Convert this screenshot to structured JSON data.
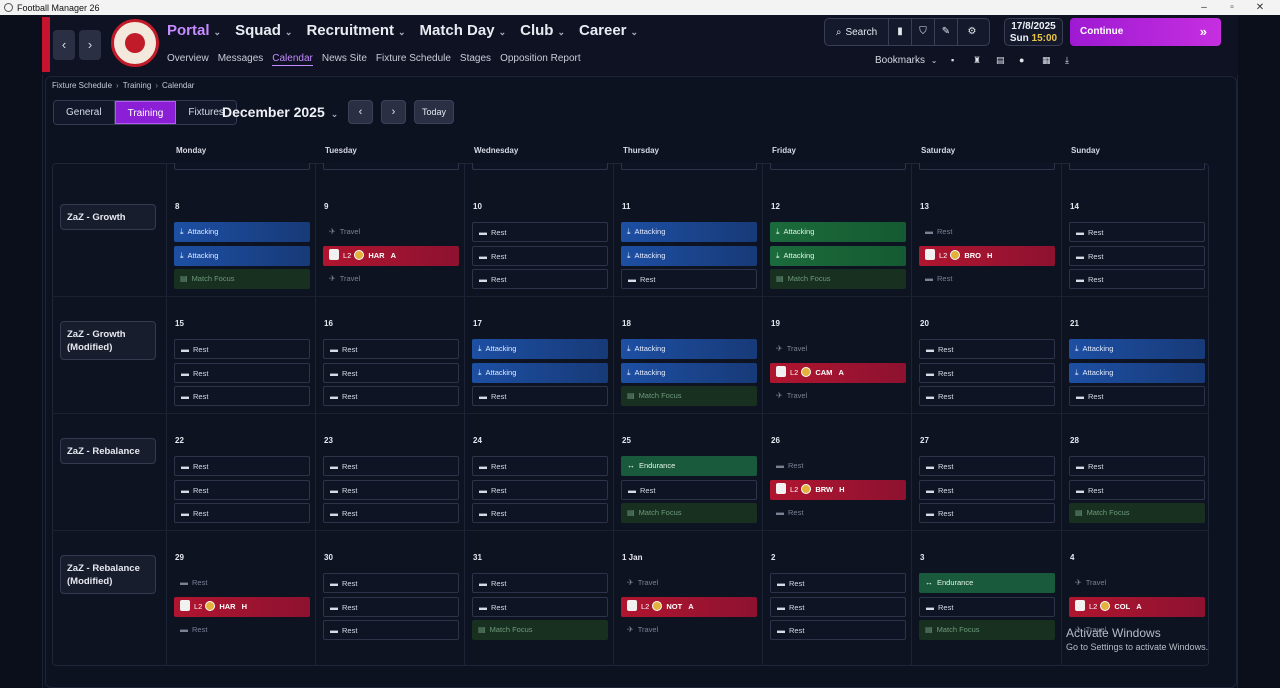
{
  "window": {
    "title": "Football Manager 26"
  },
  "header": {
    "main_nav": [
      {
        "label": "Portal",
        "active": true
      },
      {
        "label": "Squad"
      },
      {
        "label": "Recruitment"
      },
      {
        "label": "Match Day"
      },
      {
        "label": "Club"
      },
      {
        "label": "Career"
      }
    ],
    "sub_nav": [
      {
        "label": "Overview"
      },
      {
        "label": "Messages"
      },
      {
        "label": "Calendar",
        "active": true
      },
      {
        "label": "News Site"
      },
      {
        "label": "Fixture Schedule"
      },
      {
        "label": "Stages"
      },
      {
        "label": "Opposition Report"
      }
    ],
    "search_label": "Search",
    "date": "17/8/2025",
    "day": "Sun",
    "time": "15:00",
    "continue_label": "Continue",
    "bookmarks_label": "Bookmarks"
  },
  "breadcrumb": [
    "Fixture Schedule",
    "Training",
    "Calendar"
  ],
  "view_tabs": [
    {
      "label": "General"
    },
    {
      "label": "Training",
      "active": true
    },
    {
      "label": "Fixtures"
    }
  ],
  "month_label": "December 2025",
  "today_label": "Today",
  "day_headers": [
    "Monday",
    "Tuesday",
    "Wednesday",
    "Thursday",
    "Friday",
    "Saturday",
    "Sunday"
  ],
  "weeks": [
    {
      "label": "ZaZ - Growth",
      "days": [
        {
          "num": "8",
          "events": [
            {
              "t": "attacking",
              "label": "Attacking"
            },
            {
              "t": "attacking",
              "label": "Attacking"
            },
            {
              "t": "focus",
              "label": "Match Focus"
            }
          ]
        },
        {
          "num": "9",
          "events": [
            {
              "t": "travel",
              "label": "Travel"
            },
            {
              "t": "match",
              "comp": "L2",
              "opp": "HAR",
              "venue": "A"
            },
            {
              "t": "travel",
              "label": "Travel"
            }
          ]
        },
        {
          "num": "10",
          "events": [
            {
              "t": "rest",
              "label": "Rest"
            },
            {
              "t": "rest",
              "label": "Rest"
            },
            {
              "t": "rest",
              "label": "Rest"
            }
          ]
        },
        {
          "num": "11",
          "events": [
            {
              "t": "attacking",
              "label": "Attacking"
            },
            {
              "t": "attacking",
              "label": "Attacking"
            },
            {
              "t": "rest",
              "label": "Rest"
            }
          ]
        },
        {
          "num": "12",
          "events": [
            {
              "t": "attacking-green",
              "label": "Attacking"
            },
            {
              "t": "attacking-green",
              "label": "Attacking"
            },
            {
              "t": "focus",
              "label": "Match Focus"
            }
          ]
        },
        {
          "num": "13",
          "events": [
            {
              "t": "rest-dim",
              "label": "Rest"
            },
            {
              "t": "match",
              "comp": "L2",
              "opp": "BRO",
              "venue": "H"
            },
            {
              "t": "rest-dim",
              "label": "Rest"
            }
          ]
        },
        {
          "num": "14",
          "events": [
            {
              "t": "rest",
              "label": "Rest"
            },
            {
              "t": "rest",
              "label": "Rest"
            },
            {
              "t": "rest",
              "label": "Rest"
            }
          ]
        }
      ]
    },
    {
      "label": "ZaZ - Growth (Modified)",
      "days": [
        {
          "num": "15",
          "events": [
            {
              "t": "rest",
              "label": "Rest"
            },
            {
              "t": "rest",
              "label": "Rest"
            },
            {
              "t": "rest",
              "label": "Rest"
            }
          ]
        },
        {
          "num": "16",
          "events": [
            {
              "t": "rest",
              "label": "Rest"
            },
            {
              "t": "rest",
              "label": "Rest"
            },
            {
              "t": "rest",
              "label": "Rest"
            }
          ]
        },
        {
          "num": "17",
          "events": [
            {
              "t": "attacking",
              "label": "Attacking"
            },
            {
              "t": "attacking",
              "label": "Attacking"
            },
            {
              "t": "rest",
              "label": "Rest"
            }
          ]
        },
        {
          "num": "18",
          "events": [
            {
              "t": "attacking",
              "label": "Attacking"
            },
            {
              "t": "attacking",
              "label": "Attacking"
            },
            {
              "t": "focus",
              "label": "Match Focus"
            }
          ]
        },
        {
          "num": "19",
          "events": [
            {
              "t": "travel",
              "label": "Travel"
            },
            {
              "t": "match",
              "comp": "L2",
              "opp": "CAM",
              "venue": "A"
            },
            {
              "t": "travel",
              "label": "Travel"
            }
          ]
        },
        {
          "num": "20",
          "events": [
            {
              "t": "rest",
              "label": "Rest"
            },
            {
              "t": "rest",
              "label": "Rest"
            },
            {
              "t": "rest",
              "label": "Rest"
            }
          ]
        },
        {
          "num": "21",
          "events": [
            {
              "t": "attacking",
              "label": "Attacking"
            },
            {
              "t": "attacking",
              "label": "Attacking"
            },
            {
              "t": "rest",
              "label": "Rest"
            }
          ]
        }
      ]
    },
    {
      "label": "ZaZ - Rebalance",
      "days": [
        {
          "num": "22",
          "events": [
            {
              "t": "rest",
              "label": "Rest"
            },
            {
              "t": "rest",
              "label": "Rest"
            },
            {
              "t": "rest",
              "label": "Rest"
            }
          ]
        },
        {
          "num": "23",
          "events": [
            {
              "t": "rest",
              "label": "Rest"
            },
            {
              "t": "rest",
              "label": "Rest"
            },
            {
              "t": "rest",
              "label": "Rest"
            }
          ]
        },
        {
          "num": "24",
          "events": [
            {
              "t": "rest",
              "label": "Rest"
            },
            {
              "t": "rest",
              "label": "Rest"
            },
            {
              "t": "rest",
              "label": "Rest"
            }
          ]
        },
        {
          "num": "25",
          "events": [
            {
              "t": "endurance",
              "label": "Endurance"
            },
            {
              "t": "rest",
              "label": "Rest"
            },
            {
              "t": "focus",
              "label": "Match Focus"
            }
          ]
        },
        {
          "num": "26",
          "events": [
            {
              "t": "rest-dim",
              "label": "Rest"
            },
            {
              "t": "match",
              "comp": "L2",
              "opp": "BRW",
              "venue": "H"
            },
            {
              "t": "rest-dim",
              "label": "Rest"
            }
          ]
        },
        {
          "num": "27",
          "events": [
            {
              "t": "rest",
              "label": "Rest"
            },
            {
              "t": "rest",
              "label": "Rest"
            },
            {
              "t": "rest",
              "label": "Rest"
            }
          ]
        },
        {
          "num": "28",
          "events": [
            {
              "t": "rest",
              "label": "Rest"
            },
            {
              "t": "rest",
              "label": "Rest"
            },
            {
              "t": "focus",
              "label": "Match Focus"
            }
          ]
        }
      ]
    },
    {
      "label": "ZaZ - Rebalance (Modified)",
      "days": [
        {
          "num": "29",
          "events": [
            {
              "t": "rest-dim",
              "label": "Rest"
            },
            {
              "t": "match",
              "comp": "L2",
              "opp": "HAR",
              "venue": "H"
            },
            {
              "t": "rest-dim",
              "label": "Rest"
            }
          ]
        },
        {
          "num": "30",
          "events": [
            {
              "t": "rest",
              "label": "Rest"
            },
            {
              "t": "rest",
              "label": "Rest"
            },
            {
              "t": "rest",
              "label": "Rest"
            }
          ]
        },
        {
          "num": "31",
          "events": [
            {
              "t": "rest",
              "label": "Rest"
            },
            {
              "t": "rest",
              "label": "Rest"
            },
            {
              "t": "focus",
              "label": "Match Focus"
            }
          ]
        },
        {
          "num": "1 Jan",
          "events": [
            {
              "t": "travel",
              "label": "Travel"
            },
            {
              "t": "match",
              "comp": "L2",
              "opp": "NOT",
              "venue": "A"
            },
            {
              "t": "travel",
              "label": "Travel"
            }
          ]
        },
        {
          "num": "2",
          "events": [
            {
              "t": "rest",
              "label": "Rest"
            },
            {
              "t": "rest",
              "label": "Rest"
            },
            {
              "t": "rest",
              "label": "Rest"
            }
          ]
        },
        {
          "num": "3",
          "events": [
            {
              "t": "endurance",
              "label": "Endurance"
            },
            {
              "t": "rest",
              "label": "Rest"
            },
            {
              "t": "focus",
              "label": "Match Focus"
            }
          ]
        },
        {
          "num": "4",
          "events": [
            {
              "t": "travel",
              "label": "Travel"
            },
            {
              "t": "match",
              "comp": "L2",
              "opp": "COL",
              "venue": "A"
            },
            {
              "t": "travel",
              "label": "Travel"
            }
          ]
        }
      ]
    }
  ],
  "watermark": {
    "title": "Activate Windows",
    "subtitle": "Go to Settings to activate Windows."
  }
}
